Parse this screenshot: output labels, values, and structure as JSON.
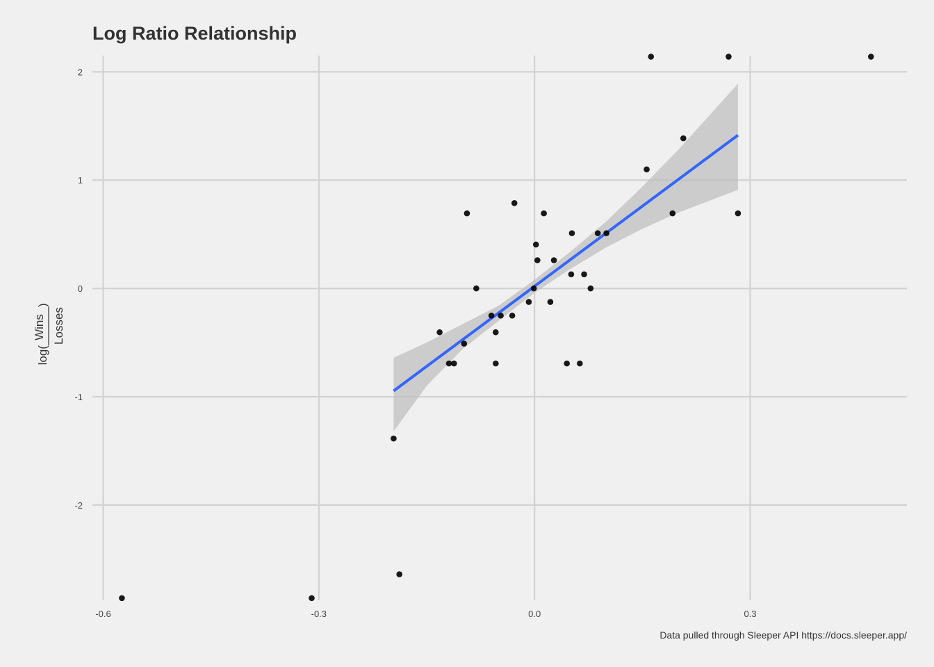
{
  "chart_data": {
    "type": "scatter",
    "title": "Log Ratio Relationship",
    "caption": "Data pulled through Sleeper API https://docs.sleeper.app/",
    "xlabel": "",
    "ylabel": {
      "prefix": "log(",
      "numerator": "Wins",
      "denominator": "Losses",
      "suffix": ")"
    },
    "xlim": [
      -0.615,
      0.518
    ],
    "ylim": [
      -2.88,
      2.15
    ],
    "x_ticks": [
      -0.6,
      -0.3,
      0.0,
      0.3
    ],
    "x_tick_labels": [
      "-0.6",
      "-0.3",
      "0.0",
      "0.3"
    ],
    "y_ticks": [
      -2,
      -1,
      0,
      1,
      2
    ],
    "y_tick_labels": [
      "-2",
      "-1",
      "0",
      "1",
      "2"
    ],
    "grid": true,
    "points": [
      {
        "x": -0.574,
        "y": -2.86
      },
      {
        "x": -0.31,
        "y": -2.86
      },
      {
        "x": -0.196,
        "y": -1.386
      },
      {
        "x": -0.188,
        "y": -2.64
      },
      {
        "x": -0.132,
        "y": -0.405
      },
      {
        "x": -0.119,
        "y": -0.693
      },
      {
        "x": -0.112,
        "y": -0.693
      },
      {
        "x": -0.098,
        "y": -0.51
      },
      {
        "x": -0.094,
        "y": 0.693
      },
      {
        "x": -0.081,
        "y": 0.0
      },
      {
        "x": -0.06,
        "y": -0.251
      },
      {
        "x": -0.054,
        "y": -0.693
      },
      {
        "x": -0.054,
        "y": -0.405
      },
      {
        "x": -0.047,
        "y": -0.251
      },
      {
        "x": -0.031,
        "y": -0.251
      },
      {
        "x": -0.028,
        "y": 0.788
      },
      {
        "x": -0.008,
        "y": -0.125
      },
      {
        "x": -0.001,
        "y": 0.0
      },
      {
        "x": 0.002,
        "y": 0.405
      },
      {
        "x": 0.004,
        "y": 0.26
      },
      {
        "x": 0.013,
        "y": 0.693
      },
      {
        "x": 0.022,
        "y": -0.125
      },
      {
        "x": 0.027,
        "y": 0.26
      },
      {
        "x": 0.045,
        "y": -0.693
      },
      {
        "x": 0.051,
        "y": 0.13
      },
      {
        "x": 0.052,
        "y": 0.51
      },
      {
        "x": 0.063,
        "y": -0.693
      },
      {
        "x": 0.069,
        "y": 0.13
      },
      {
        "x": 0.078,
        "y": 0.0
      },
      {
        "x": 0.088,
        "y": 0.51
      },
      {
        "x": 0.1,
        "y": 0.51
      },
      {
        "x": 0.156,
        "y": 1.099
      },
      {
        "x": 0.162,
        "y": 2.14
      },
      {
        "x": 0.192,
        "y": 0.693
      },
      {
        "x": 0.207,
        "y": 1.386
      },
      {
        "x": 0.27,
        "y": 2.14
      },
      {
        "x": 0.283,
        "y": 0.693
      },
      {
        "x": 0.468,
        "y": 2.14
      }
    ],
    "trend_line": {
      "type": "linear",
      "x_range": [
        -0.196,
        0.283
      ],
      "intercept": 0.02,
      "slope": 4.93,
      "confidence_band": [
        {
          "x": -0.196,
          "lower": -1.32,
          "upper": -0.64
        },
        {
          "x": -0.15,
          "lower": -0.9,
          "upper": -0.5
        },
        {
          "x": -0.1,
          "lower": -0.56,
          "upper": -0.33
        },
        {
          "x": -0.05,
          "lower": -0.3,
          "upper": -0.16
        },
        {
          "x": 0.0,
          "lower": -0.04,
          "upper": 0.08
        },
        {
          "x": 0.05,
          "lower": 0.18,
          "upper": 0.34
        },
        {
          "x": 0.1,
          "lower": 0.38,
          "upper": 0.62
        },
        {
          "x": 0.15,
          "lower": 0.55,
          "upper": 0.94
        },
        {
          "x": 0.2,
          "lower": 0.7,
          "upper": 1.28
        },
        {
          "x": 0.283,
          "lower": 0.91,
          "upper": 1.89
        }
      ]
    },
    "colors": {
      "background": "#f0f0f0",
      "grid": "#d2d2d2",
      "points": "#000000",
      "trend_line": "#3366ff",
      "band": "#bebebe"
    }
  }
}
